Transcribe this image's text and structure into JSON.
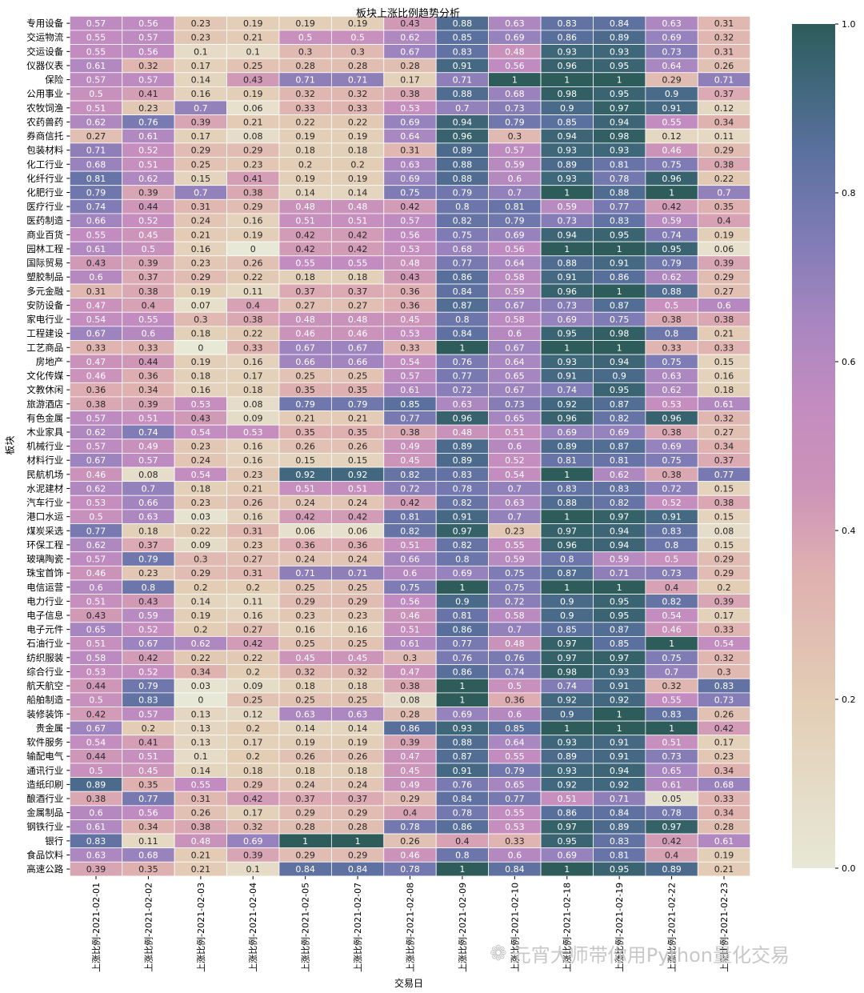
{
  "chart_data": {
    "type": "heatmap",
    "title": "板块上涨比例趋势分析",
    "xlabel": "交易日",
    "ylabel": "板块",
    "columns": [
      "上涨比例-2021-02-01",
      "上涨比例-2021-02-02",
      "上涨比例-2021-02-03",
      "上涨比例-2021-02-04",
      "上涨比例-2021-02-05",
      "上涨比例-2021-02-07",
      "上涨比例-2021-02-08",
      "上涨比例-2021-02-09",
      "上涨比例-2021-02-10",
      "上涨比例-2021-02-18",
      "上涨比例-2021-02-19",
      "上涨比例-2021-02-22",
      "上涨比例-2021-02-23"
    ],
    "rows": [
      "专用设备",
      "交运物流",
      "交运设备",
      "仪器仪表",
      "保险",
      "公用事业",
      "农牧饲渔",
      "农药兽药",
      "券商信托",
      "包装材料",
      "化工行业",
      "化纤行业",
      "化肥行业",
      "医疗行业",
      "医药制造",
      "商业百货",
      "园林工程",
      "国际贸易",
      "塑胶制品",
      "多元金融",
      "安防设备",
      "家电行业",
      "工程建设",
      "工艺商品",
      "房地产",
      "文化传媒",
      "文教休闲",
      "旅游酒店",
      "有色金属",
      "木业家具",
      "机械行业",
      "材料行业",
      "民航机场",
      "水泥建材",
      "汽车行业",
      "港口水运",
      "煤炭采选",
      "环保工程",
      "玻璃陶瓷",
      "珠宝首饰",
      "电信运营",
      "电力行业",
      "电子信息",
      "电子元件",
      "石油行业",
      "纺织服装",
      "综合行业",
      "航天航空",
      "船舶制造",
      "装修装饰",
      "贵金属",
      "软件服务",
      "输配电气",
      "通讯行业",
      "造纸印刷",
      "酿酒行业",
      "金属制品",
      "钢铁行业",
      "银行",
      "食品饮料",
      "高速公路"
    ],
    "values": [
      [
        0.57,
        0.56,
        0.23,
        0.19,
        0.19,
        0.19,
        0.43,
        0.88,
        0.63,
        0.83,
        0.84,
        0.63,
        0.31
      ],
      [
        0.55,
        0.57,
        0.23,
        0.21,
        0.5,
        0.5,
        0.62,
        0.85,
        0.69,
        0.86,
        0.89,
        0.69,
        0.32
      ],
      [
        0.55,
        0.56,
        0.1,
        0.1,
        0.3,
        0.3,
        0.67,
        0.83,
        0.48,
        0.93,
        0.93,
        0.73,
        0.31
      ],
      [
        0.61,
        0.32,
        0.17,
        0.25,
        0.28,
        0.28,
        0.28,
        0.91,
        0.56,
        0.96,
        0.95,
        0.64,
        0.26
      ],
      [
        0.57,
        0.57,
        0.14,
        0.43,
        0.71,
        0.71,
        0.17,
        0.71,
        1,
        1,
        1,
        0.29,
        0.71
      ],
      [
        0.5,
        0.41,
        0.16,
        0.19,
        0.32,
        0.32,
        0.38,
        0.88,
        0.68,
        0.98,
        0.95,
        0.9,
        0.37
      ],
      [
        0.51,
        0.23,
        0.7,
        0.06,
        0.33,
        0.33,
        0.53,
        0.7,
        0.73,
        0.9,
        0.97,
        0.91,
        0.12
      ],
      [
        0.62,
        0.76,
        0.39,
        0.21,
        0.22,
        0.22,
        0.69,
        0.94,
        0.79,
        0.85,
        0.94,
        0.55,
        0.34
      ],
      [
        0.27,
        0.61,
        0.17,
        0.08,
        0.19,
        0.19,
        0.64,
        0.96,
        0.3,
        0.94,
        0.98,
        0.12,
        0.11
      ],
      [
        0.71,
        0.52,
        0.29,
        0.29,
        0.18,
        0.18,
        0.31,
        0.89,
        0.57,
        0.93,
        0.93,
        0.46,
        0.29
      ],
      [
        0.68,
        0.51,
        0.25,
        0.23,
        0.2,
        0.2,
        0.63,
        0.88,
        0.59,
        0.89,
        0.81,
        0.75,
        0.38
      ],
      [
        0.81,
        0.62,
        0.15,
        0.41,
        0.19,
        0.19,
        0.69,
        0.88,
        0.6,
        0.93,
        0.78,
        0.96,
        0.22
      ],
      [
        0.79,
        0.39,
        0.7,
        0.38,
        0.14,
        0.14,
        0.75,
        0.79,
        0.7,
        1,
        0.88,
        1,
        0.7
      ],
      [
        0.74,
        0.44,
        0.31,
        0.29,
        0.48,
        0.48,
        0.42,
        0.8,
        0.81,
        0.59,
        0.77,
        0.42,
        0.35
      ],
      [
        0.66,
        0.52,
        0.24,
        0.16,
        0.51,
        0.51,
        0.57,
        0.82,
        0.79,
        0.73,
        0.83,
        0.59,
        0.4
      ],
      [
        0.55,
        0.45,
        0.21,
        0.19,
        0.42,
        0.42,
        0.56,
        0.75,
        0.69,
        0.94,
        0.95,
        0.74,
        0.19
      ],
      [
        0.61,
        0.5,
        0.16,
        0,
        0.42,
        0.42,
        0.53,
        0.68,
        0.56,
        1,
        1,
        0.95,
        0.06
      ],
      [
        0.43,
        0.39,
        0.23,
        0.26,
        0.55,
        0.55,
        0.48,
        0.77,
        0.64,
        0.88,
        0.91,
        0.79,
        0.39
      ],
      [
        0.6,
        0.37,
        0.29,
        0.22,
        0.18,
        0.18,
        0.43,
        0.86,
        0.58,
        0.91,
        0.86,
        0.62,
        0.29
      ],
      [
        0.31,
        0.38,
        0.19,
        0.11,
        0.37,
        0.37,
        0.36,
        0.84,
        0.59,
        0.96,
        1,
        0.88,
        0.27
      ],
      [
        0.47,
        0.4,
        0.07,
        0.4,
        0.27,
        0.27,
        0.36,
        0.87,
        0.67,
        0.73,
        0.87,
        0.5,
        0.6
      ],
      [
        0.54,
        0.55,
        0.3,
        0.38,
        0.48,
        0.48,
        0.45,
        0.8,
        0.58,
        0.69,
        0.75,
        0.38,
        0.38
      ],
      [
        0.67,
        0.6,
        0.18,
        0.22,
        0.46,
        0.46,
        0.53,
        0.84,
        0.6,
        0.95,
        0.98,
        0.8,
        0.21
      ],
      [
        0.33,
        0.33,
        0,
        0.33,
        0.67,
        0.67,
        0.33,
        1,
        0.67,
        1,
        1,
        0.33,
        0.33
      ],
      [
        0.47,
        0.44,
        0.19,
        0.16,
        0.66,
        0.66,
        0.54,
        0.76,
        0.64,
        0.93,
        0.94,
        0.75,
        0.15
      ],
      [
        0.46,
        0.36,
        0.18,
        0.17,
        0.25,
        0.25,
        0.57,
        0.77,
        0.65,
        0.91,
        0.9,
        0.63,
        0.16
      ],
      [
        0.36,
        0.34,
        0.16,
        0.18,
        0.35,
        0.35,
        0.61,
        0.72,
        0.67,
        0.74,
        0.95,
        0.62,
        0.18
      ],
      [
        0.38,
        0.39,
        0.53,
        0.08,
        0.79,
        0.79,
        0.85,
        0.63,
        0.73,
        0.92,
        0.87,
        0.53,
        0.61
      ],
      [
        0.57,
        0.51,
        0.43,
        0.09,
        0.21,
        0.21,
        0.77,
        0.96,
        0.65,
        0.96,
        0.82,
        0.96,
        0.32
      ],
      [
        0.62,
        0.74,
        0.54,
        0.53,
        0.35,
        0.35,
        0.38,
        0.48,
        0.51,
        0.69,
        0.69,
        0.38,
        0.27
      ],
      [
        0.57,
        0.49,
        0.23,
        0.16,
        0.26,
        0.26,
        0.49,
        0.89,
        0.6,
        0.89,
        0.87,
        0.69,
        0.34
      ],
      [
        0.67,
        0.57,
        0.24,
        0.16,
        0.15,
        0.15,
        0.45,
        0.89,
        0.52,
        0.81,
        0.81,
        0.75,
        0.37
      ],
      [
        0.46,
        0.08,
        0.54,
        0.23,
        0.92,
        0.92,
        0.82,
        0.83,
        0.54,
        1,
        0.62,
        0.38,
        0.77
      ],
      [
        0.62,
        0.7,
        0.18,
        0.21,
        0.51,
        0.51,
        0.72,
        0.78,
        0.7,
        0.83,
        0.83,
        0.72,
        0.15
      ],
      [
        0.53,
        0.66,
        0.23,
        0.26,
        0.24,
        0.24,
        0.42,
        0.82,
        0.63,
        0.88,
        0.82,
        0.52,
        0.38
      ],
      [
        0.5,
        0.63,
        0.03,
        0.16,
        0.42,
        0.42,
        0.81,
        0.91,
        0.7,
        1,
        0.97,
        0.91,
        0.15
      ],
      [
        0.77,
        0.18,
        0.22,
        0.31,
        0.06,
        0.06,
        0.82,
        0.97,
        0.23,
        0.97,
        0.94,
        0.83,
        0.08
      ],
      [
        0.62,
        0.37,
        0.09,
        0.23,
        0.36,
        0.36,
        0.51,
        0.82,
        0.55,
        0.96,
        0.94,
        0.8,
        0.15
      ],
      [
        0.57,
        0.79,
        0.3,
        0.27,
        0.24,
        0.24,
        0.66,
        0.8,
        0.59,
        0.8,
        0.59,
        0.5,
        0.29
      ],
      [
        0.46,
        0.23,
        0.29,
        0.31,
        0.71,
        0.71,
        0.6,
        0.69,
        0.75,
        0.87,
        0.71,
        0.73,
        0.29
      ],
      [
        0.6,
        0.8,
        0.2,
        0.2,
        0.25,
        0.25,
        0.75,
        1,
        0.75,
        1,
        1,
        0.4,
        0.2
      ],
      [
        0.51,
        0.43,
        0.14,
        0.11,
        0.29,
        0.29,
        0.56,
        0.9,
        0.72,
        0.9,
        0.95,
        0.82,
        0.39
      ],
      [
        0.43,
        0.59,
        0.19,
        0.16,
        0.23,
        0.23,
        0.46,
        0.81,
        0.58,
        0.9,
        0.95,
        0.54,
        0.17
      ],
      [
        0.65,
        0.52,
        0.2,
        0.27,
        0.16,
        0.16,
        0.51,
        0.86,
        0.7,
        0.85,
        0.87,
        0.46,
        0.33
      ],
      [
        0.51,
        0.67,
        0.62,
        0.42,
        0.25,
        0.25,
        0.61,
        0.77,
        0.48,
        0.97,
        0.85,
        1,
        0.54
      ],
      [
        0.58,
        0.42,
        0.22,
        0.22,
        0.45,
        0.45,
        0.3,
        0.76,
        0.76,
        0.97,
        0.97,
        0.75,
        0.32
      ],
      [
        0.53,
        0.52,
        0.34,
        0.2,
        0.32,
        0.32,
        0.47,
        0.86,
        0.74,
        0.98,
        0.93,
        0.7,
        0.3
      ],
      [
        0.44,
        0.79,
        0.03,
        0.09,
        0.18,
        0.18,
        0.38,
        1,
        0.5,
        0.74,
        0.91,
        0.32,
        0.83
      ],
      [
        0.5,
        0.83,
        0,
        0.25,
        0.25,
        0.25,
        0.08,
        1,
        0.36,
        0.92,
        0.92,
        0.55,
        0.73
      ],
      [
        0.42,
        0.57,
        0.13,
        0.12,
        0.63,
        0.63,
        0.28,
        0.69,
        0.6,
        0.9,
        1,
        0.83,
        0.26
      ],
      [
        0.67,
        0.2,
        0.13,
        0.2,
        0.14,
        0.14,
        0.86,
        0.93,
        0.85,
        1,
        1,
        1,
        0.42
      ],
      [
        0.54,
        0.41,
        0.13,
        0.17,
        0.19,
        0.19,
        0.39,
        0.88,
        0.64,
        0.93,
        0.91,
        0.51,
        0.17
      ],
      [
        0.44,
        0.51,
        0.1,
        0.2,
        0.26,
        0.26,
        0.47,
        0.87,
        0.55,
        0.89,
        0.91,
        0.73,
        0.23
      ],
      [
        0.5,
        0.45,
        0.14,
        0.18,
        0.18,
        0.18,
        0.45,
        0.91,
        0.79,
        0.93,
        0.94,
        0.65,
        0.34
      ],
      [
        0.89,
        0.35,
        0.55,
        0.29,
        0.24,
        0.24,
        0.49,
        0.76,
        0.65,
        0.92,
        0.92,
        0.61,
        0.68
      ],
      [
        0.38,
        0.77,
        0.31,
        0.42,
        0.37,
        0.37,
        0.29,
        0.84,
        0.77,
        0.51,
        0.71,
        0.05,
        0.33
      ],
      [
        0.6,
        0.56,
        0.26,
        0.17,
        0.29,
        0.29,
        0.4,
        0.78,
        0.55,
        0.86,
        0.84,
        0.78,
        0.34
      ],
      [
        0.61,
        0.34,
        0.38,
        0.32,
        0.28,
        0.28,
        0.78,
        0.86,
        0.53,
        0.97,
        0.89,
        0.97,
        0.28
      ],
      [
        0.83,
        0.11,
        0.48,
        0.69,
        1,
        1,
        0.26,
        0.4,
        0.33,
        0.95,
        0.83,
        0.42,
        0.61
      ],
      [
        0.63,
        0.68,
        0.21,
        0.39,
        0.29,
        0.29,
        0.46,
        0.8,
        0.6,
        0.69,
        0.81,
        0.4,
        0.19
      ],
      [
        0.39,
        0.35,
        0.21,
        0.1,
        0.84,
        0.84,
        0.78,
        1,
        0.84,
        1,
        0.95,
        0.89,
        0.21
      ]
    ],
    "colorbar": {
      "range": [
        0,
        1
      ],
      "ticks": [
        "0.0",
        "0.2",
        "0.4",
        "0.6",
        "0.8",
        "1.0"
      ],
      "colors": [
        "#e7e8d6",
        "#e3cdb5",
        "#dfb0b0",
        "#cc94b8",
        "#c38cc0",
        "#a686c0",
        "#7e7bb5",
        "#5a709e",
        "#42687f",
        "#2d5c5a"
      ]
    },
    "annotated": true,
    "grid": false
  },
  "watermark": "元宵大师带你用Python量化交易"
}
